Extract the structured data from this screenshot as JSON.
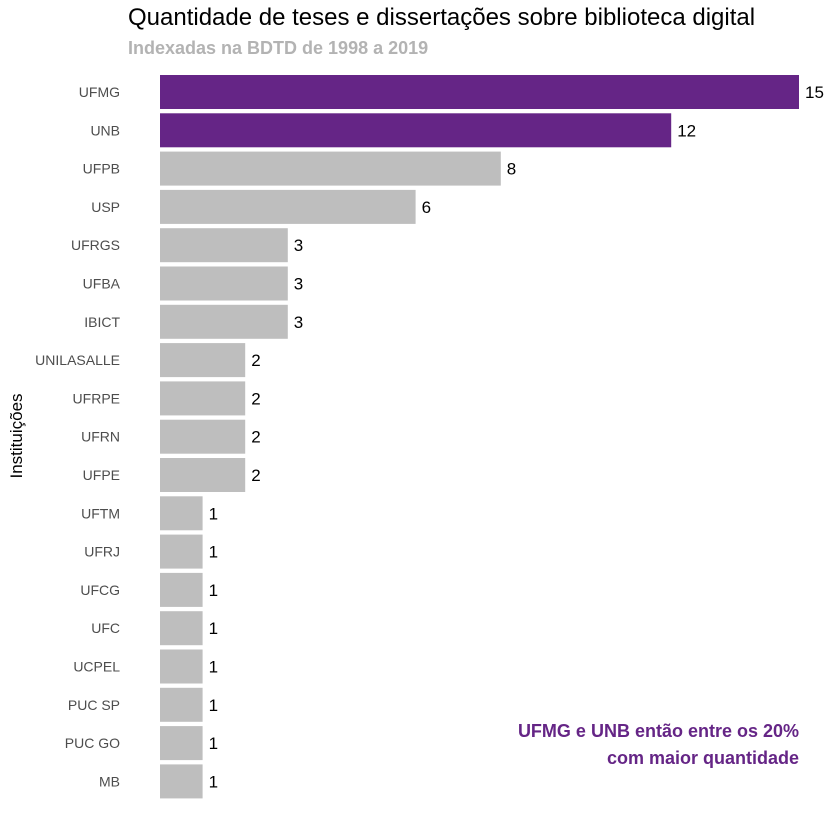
{
  "chart_data": {
    "type": "bar",
    "orientation": "horizontal",
    "title": "Quantidade de teses e dissertações sobre biblioteca digital",
    "subtitle": "Indexadas na BDTD de 1998 a 2019",
    "ylabel": "Instituições",
    "xlabel": "",
    "categories": [
      "UFMG",
      "UNB",
      "UFPB",
      "USP",
      "UFRGS",
      "UFBA",
      "IBICT",
      "UNILASALLE",
      "UFRPE",
      "UFRN",
      "UFPE",
      "UFTM",
      "UFRJ",
      "UFCG",
      "UFC",
      "UCPEL",
      "PUC SP",
      "PUC GO",
      "MB"
    ],
    "values": [
      15,
      12,
      8,
      6,
      3,
      3,
      3,
      2,
      2,
      2,
      2,
      1,
      1,
      1,
      1,
      1,
      1,
      1,
      1
    ],
    "value_labels": [
      "15",
      "12",
      "8",
      "6",
      "3",
      "3",
      "3",
      "2",
      "2",
      "2",
      "2",
      "1",
      "1",
      "1",
      "1",
      "1",
      "1",
      "1",
      "1"
    ],
    "highlighted": [
      "UFMG",
      "UNB"
    ],
    "xlim": [
      0,
      15
    ],
    "grid": false,
    "legend": "none",
    "colors": {
      "highlight": "#652586",
      "default": "#bebebe",
      "annotation": "#652586"
    },
    "annotation": {
      "line1": "UFMG e UNB então entre os 20%",
      "line2": "com maior quantidade"
    }
  }
}
